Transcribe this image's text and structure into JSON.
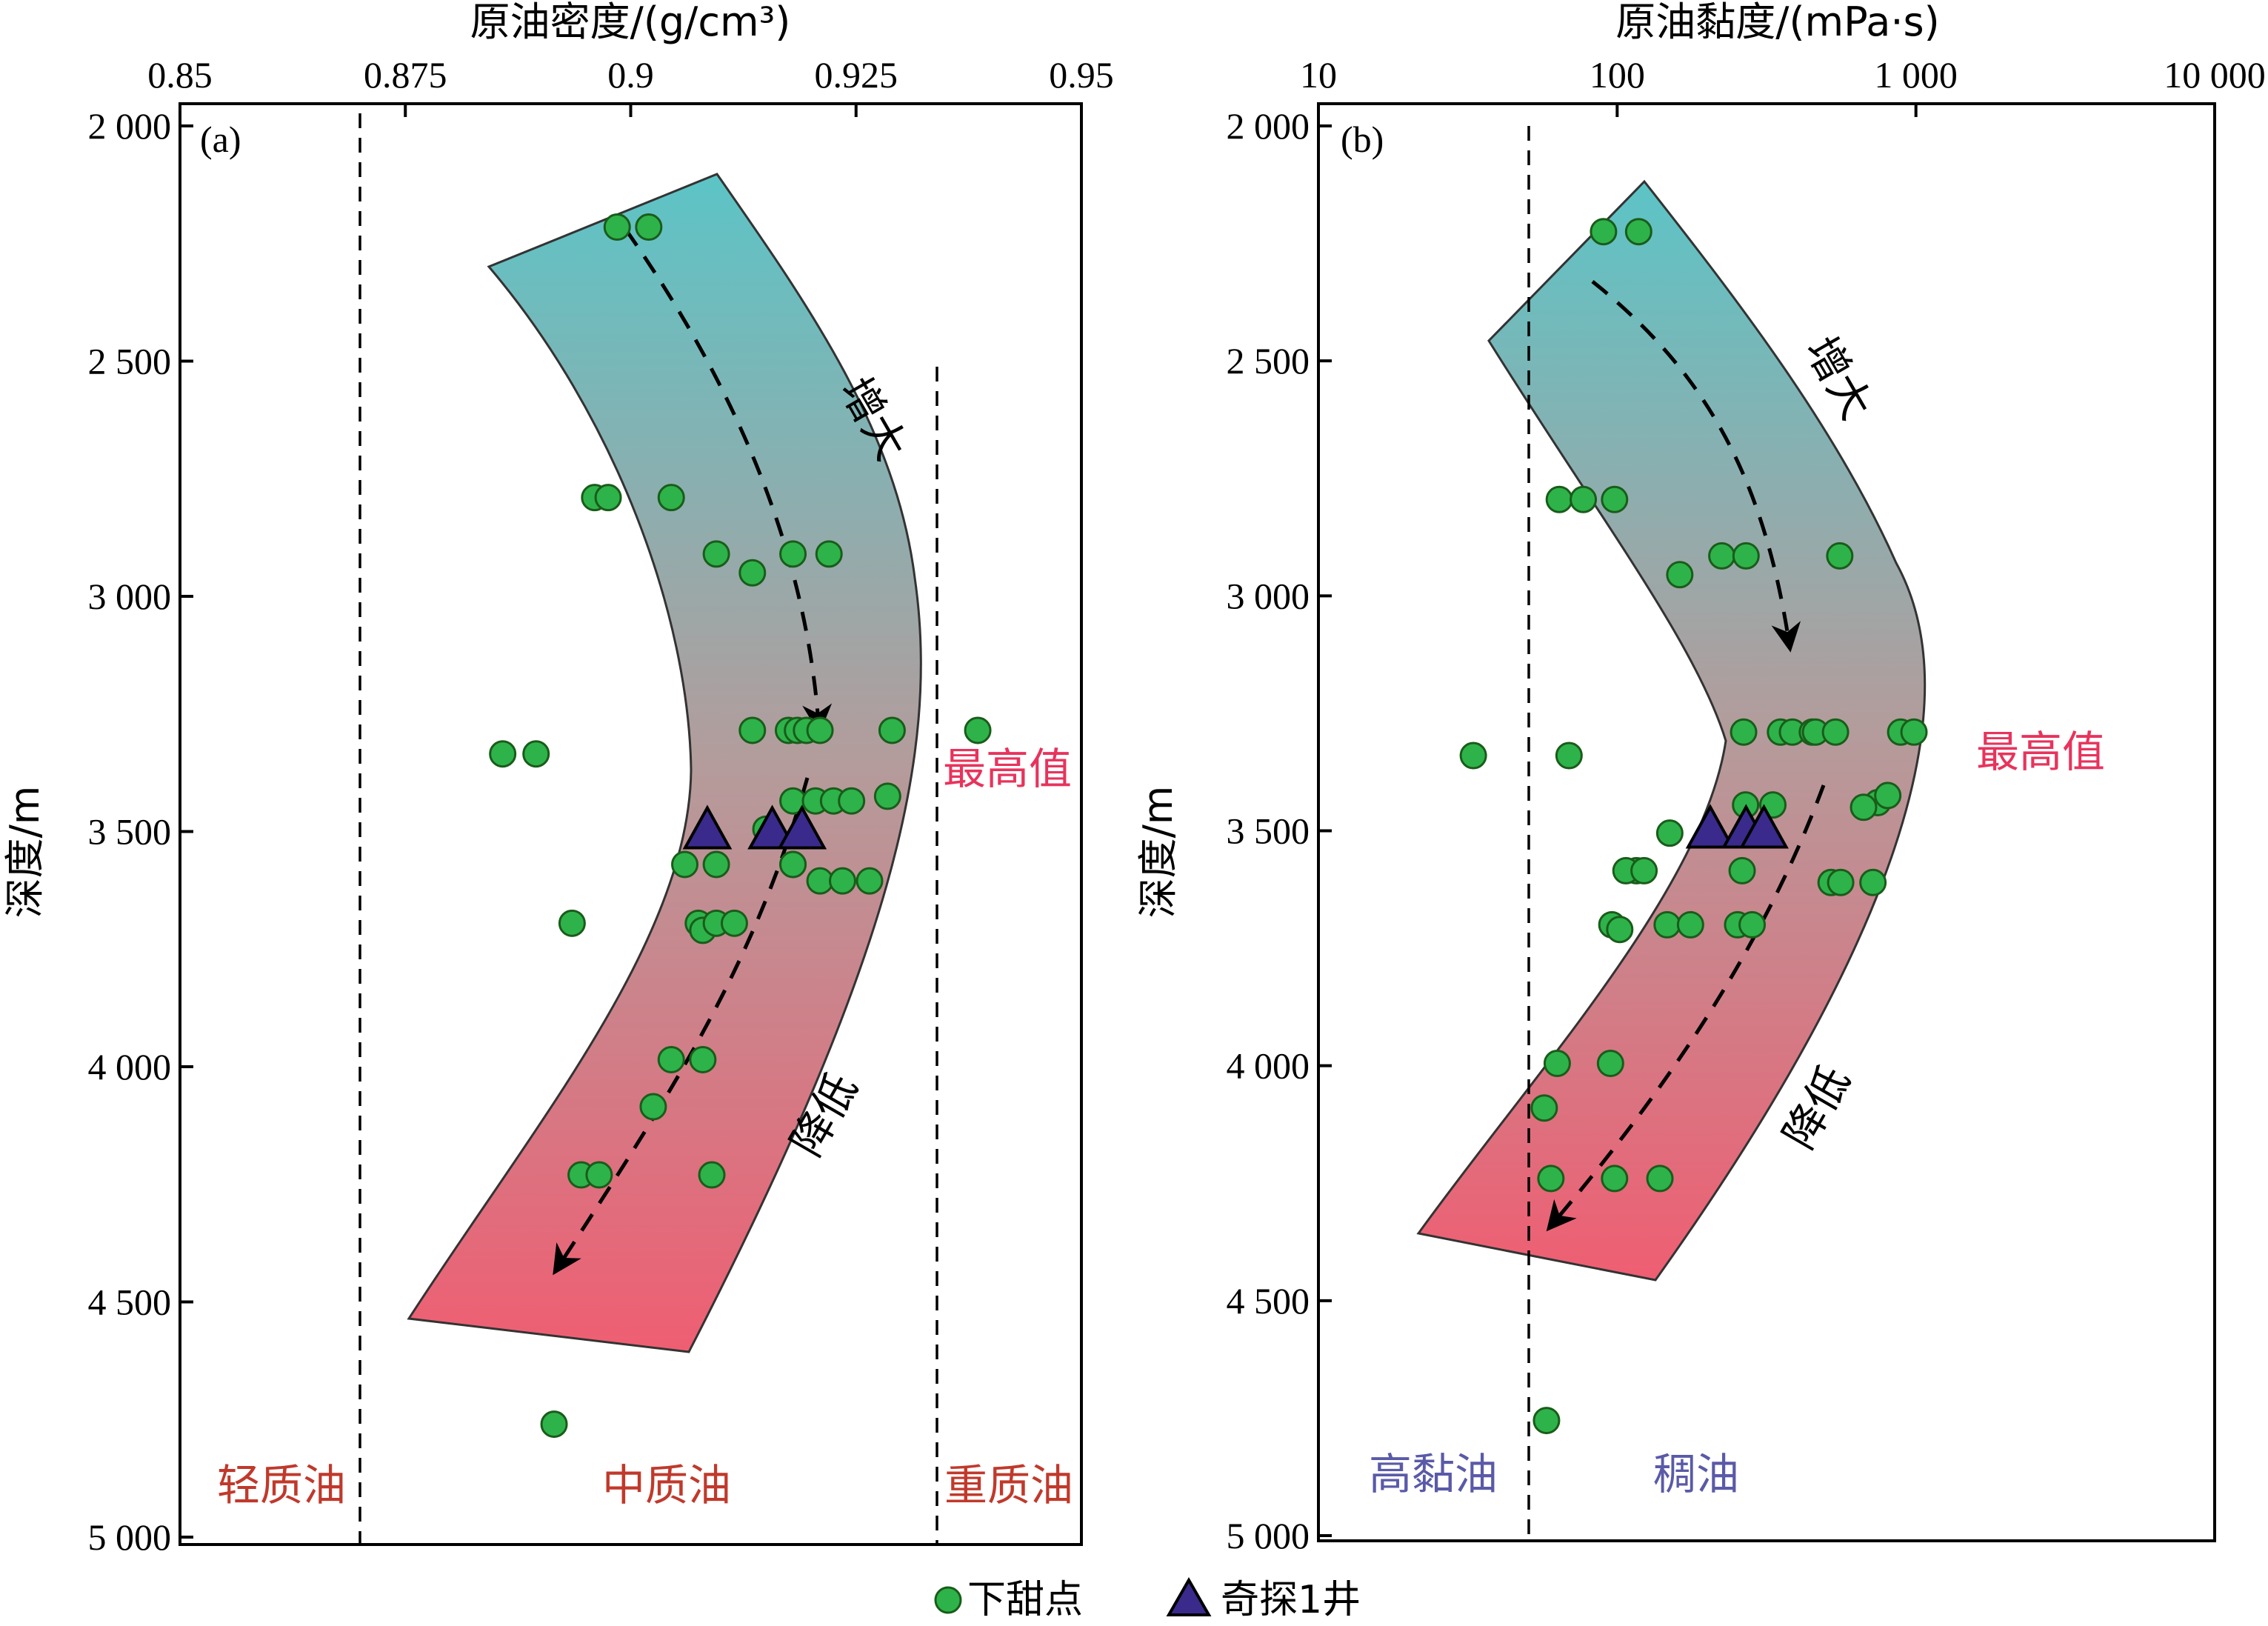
{
  "colors": {
    "green": "#2db34a",
    "triangle": "#3a2a8c",
    "band_top": "#5cc4c6",
    "band_bottom": "#ef5e72",
    "red_text": "#c0392b",
    "pink_text": "#e8335c",
    "blue_text": "#5a5aa8"
  },
  "legend": {
    "sweet": "下甜点",
    "well": "奇探1井"
  },
  "chart_data": [
    {
      "type": "scatter",
      "panel": "(a)",
      "xlabel": "原油密度/(g/cm³)",
      "ylabel": "深度/m",
      "xlim": [
        0.85,
        0.95
      ],
      "ylim": [
        5000,
        2000
      ],
      "xticks": [
        "0.85",
        "0.875",
        "0.9",
        "0.925",
        "0.95"
      ],
      "yticks": [
        "2 000",
        "2 500",
        "3 000",
        "3 500",
        "4 000",
        "4 500",
        "5 000"
      ],
      "dashed_lines_x": [
        0.868,
        0.933
      ],
      "annotations": {
        "up": "增大",
        "down": "降低",
        "max": "最高值"
      },
      "zones": [
        "轻质油",
        "中质油",
        "重质油"
      ],
      "series": [
        {
          "name": "下甜点",
          "marker": "circle",
          "x": [
            0.8985,
            0.902,
            0.896,
            0.8975,
            0.9045,
            0.9095,
            0.9135,
            0.918,
            0.922,
            0.9135,
            0.9175,
            0.9185,
            0.9195,
            0.921,
            0.929,
            0.9385,
            0.8858,
            0.8895,
            0.918,
            0.9205,
            0.9225,
            0.9245,
            0.9285,
            0.915,
            0.918,
            0.906,
            0.9095,
            0.918,
            0.921,
            0.9235,
            0.9265,
            0.8935,
            0.9075,
            0.908,
            0.9095,
            0.9115,
            0.9045,
            0.908,
            0.9025,
            0.8945,
            0.8965,
            0.909,
            0.8915
          ],
          "y": [
            2215,
            2215,
            2790,
            2790,
            2790,
            2910,
            2950,
            2910,
            2910,
            3285,
            3285,
            3285,
            3285,
            3285,
            3285,
            3285,
            3335,
            3335,
            3435,
            3435,
            3435,
            3435,
            3425,
            3495,
            3570,
            3570,
            3570,
            3570,
            3605,
            3605,
            3605,
            3695,
            3695,
            3710,
            3695,
            3695,
            3985,
            3985,
            4085,
            4230,
            4230,
            4230,
            4760
          ]
        },
        {
          "name": "奇探1井",
          "marker": "triangle",
          "x": [
            0.9085,
            0.9157,
            0.919
          ],
          "y": [
            3500,
            3500,
            3500
          ]
        }
      ]
    },
    {
      "type": "scatter",
      "panel": "(b)",
      "xlabel": "原油黏度/(mPa·s)",
      "ylabel": "深度/m",
      "xlim": [
        10,
        10000
      ],
      "xscale": "log",
      "ylim": [
        5000,
        2000
      ],
      "xticks": [
        "10",
        "100",
        "1 000",
        "10 000"
      ],
      "xtick_values": [
        10,
        100,
        1000,
        10000
      ],
      "yticks": [
        "2 000",
        "2 500",
        "3 000",
        "3 500",
        "4 000",
        "4 500",
        "5 000"
      ],
      "dashed_lines_x": [
        50
      ],
      "annotations": {
        "up": "增大",
        "down": "降低",
        "max": "最高值"
      },
      "zones": [
        "高黏油",
        "稠油"
      ],
      "series": [
        {
          "name": "下甜点",
          "marker": "circle",
          "x": [
            90,
            118,
            64,
            77,
            98,
            162,
            224,
            270,
            556,
            265,
            352,
            386,
            450,
            461,
            538,
            889,
            985,
            33,
            69,
            269,
            332,
            745,
            805,
            668,
            150,
            262,
            116,
            107,
            123,
            520,
            560,
            718,
            96,
            102,
            147,
            176,
            253,
            283,
            63,
            95,
            57,
            60,
            98,
            139,
            58
          ],
          "y": [
            2225,
            2225,
            2795,
            2795,
            2795,
            2955,
            2915,
            2915,
            2915,
            3290,
            3290,
            3290,
            3290,
            3290,
            3290,
            3290,
            3290,
            3340,
            3340,
            3445,
            3445,
            3440,
            3425,
            3450,
            3505,
            3585,
            3585,
            3585,
            3585,
            3610,
            3610,
            3610,
            3700,
            3710,
            3700,
            3700,
            3700,
            3700,
            3995,
            3995,
            4090,
            4240,
            4240,
            4240,
            4755
          ]
        },
        {
          "name": "奇探1井",
          "marker": "triangle",
          "x": [
            205,
            270,
            310
          ],
          "y": [
            3500,
            3500,
            3500
          ]
        }
      ]
    }
  ]
}
